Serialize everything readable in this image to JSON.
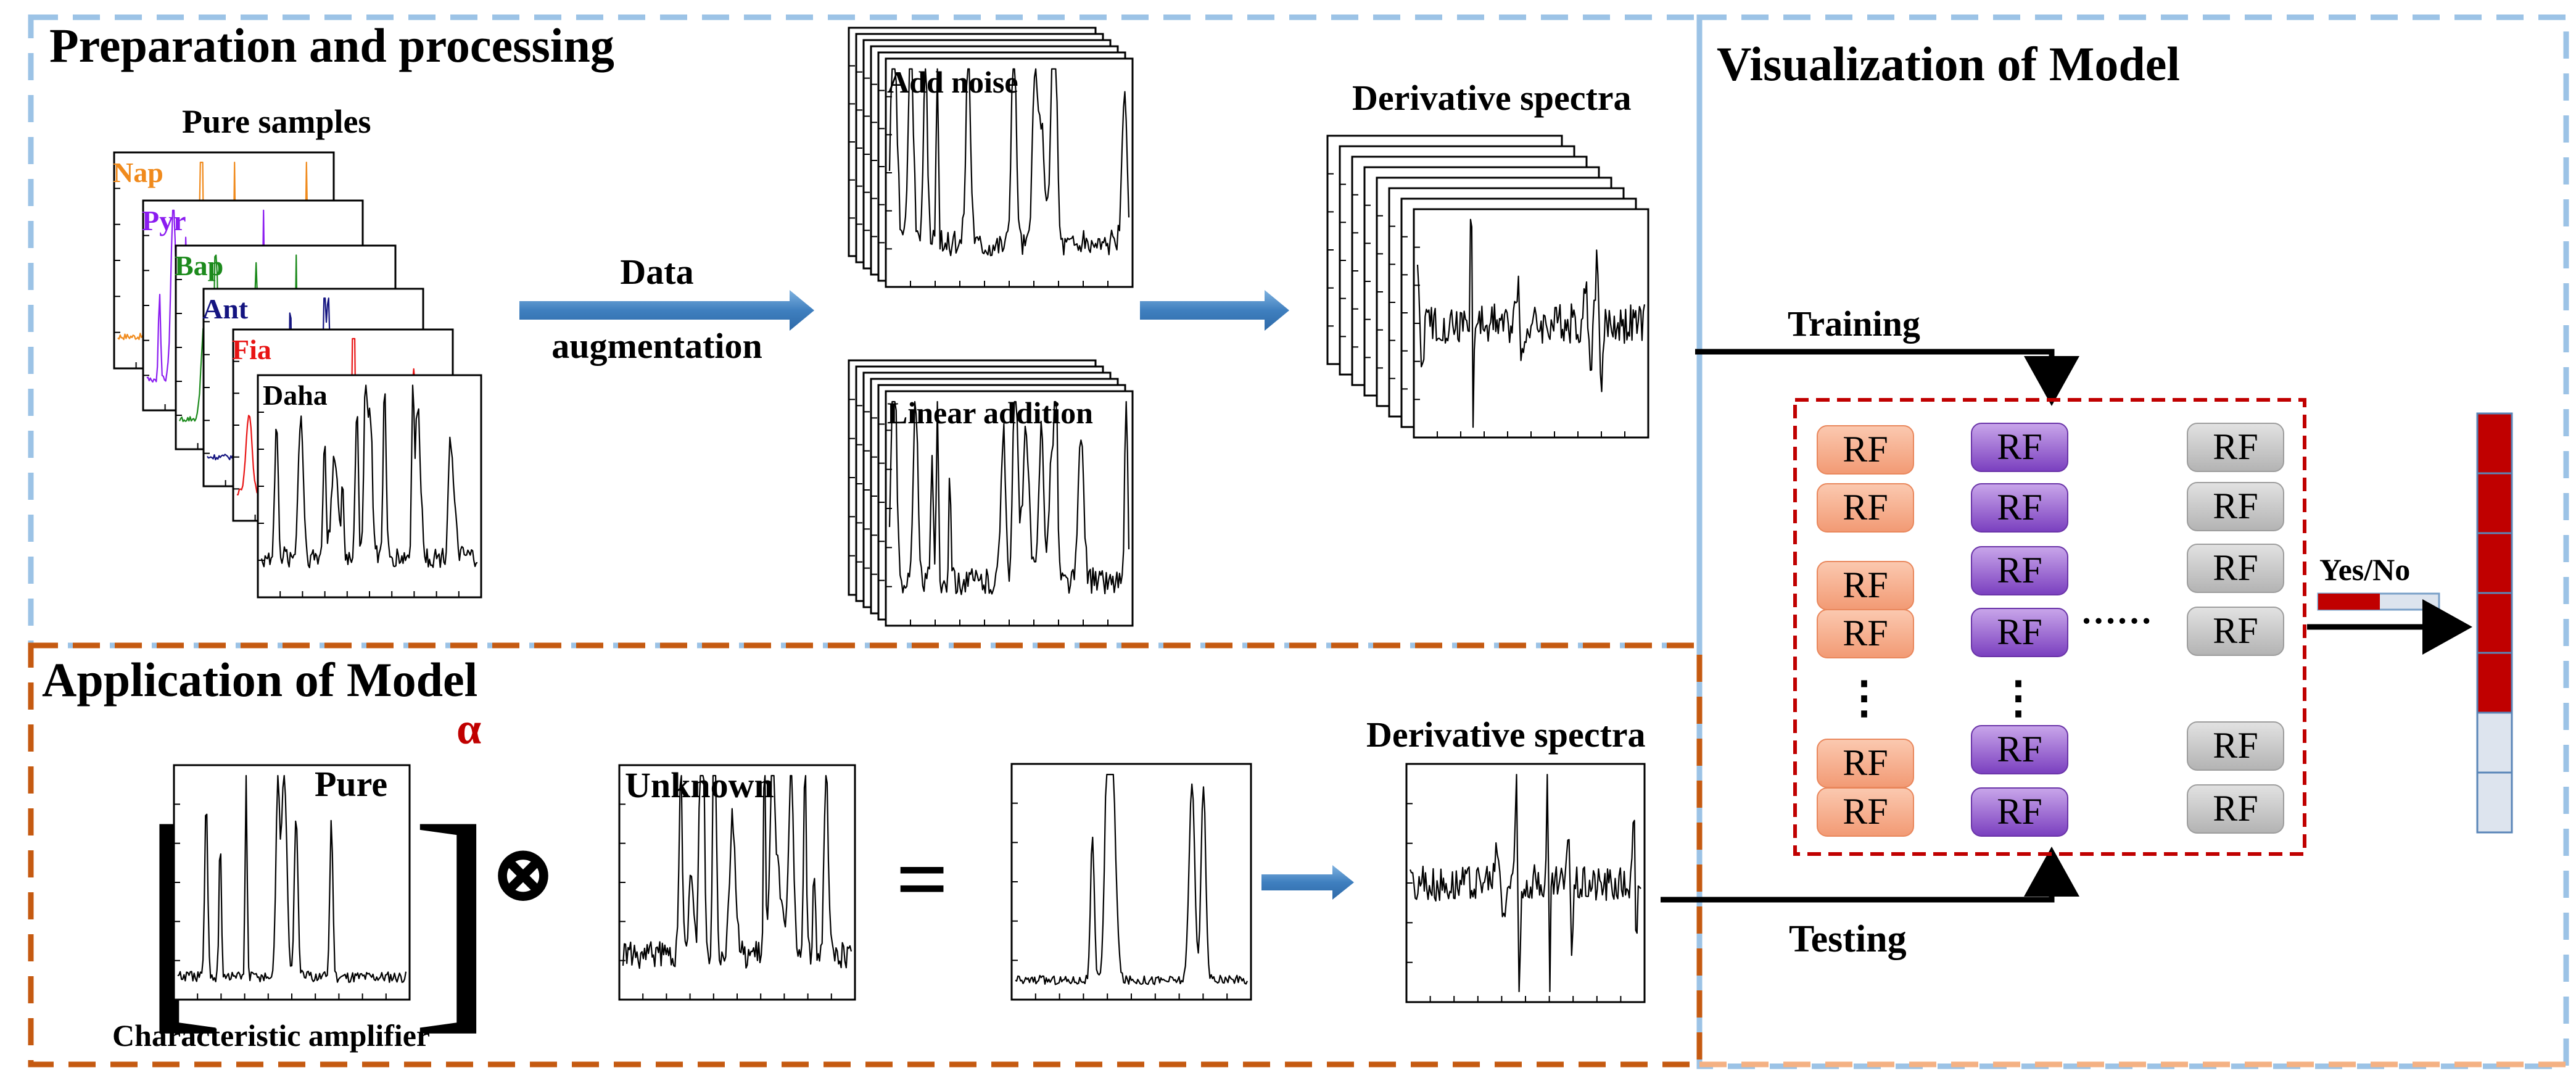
{
  "sections": {
    "preparation": {
      "title": "Preparation and processing"
    },
    "visualization": {
      "title": "Visualization of Model"
    },
    "application": {
      "title": "Application of Model"
    }
  },
  "pure_samples": {
    "title": "Pure samples",
    "items": [
      {
        "label": "Nap",
        "color": "#f08a1c"
      },
      {
        "label": "Pyr",
        "color": "#8b1cf0"
      },
      {
        "label": "Bap",
        "color": "#1c8a1c"
      },
      {
        "label": "Ant",
        "color": "#141480"
      },
      {
        "label": "Fia",
        "color": "#e81414"
      },
      {
        "label": "Daha",
        "color": "#000000"
      }
    ]
  },
  "augmentation": {
    "line1": "Data",
    "line2": "augmentation"
  },
  "augmented": {
    "add_noise": "Add noise",
    "linear_addition": "Linear addition"
  },
  "derivative_top": {
    "title": "Derivative spectra"
  },
  "model": {
    "training": "Training",
    "testing": "Testing",
    "rf_label": "RF",
    "ellipsis": "……",
    "vdots": "⋮",
    "output_label": "Yes/No",
    "colors": {
      "orange": "#f4a98a",
      "purple": "#8a4fc8",
      "gray": "#c4c4c4",
      "accent": "#c00000"
    }
  },
  "application": {
    "pure_label": "Pure",
    "alpha": "α",
    "caption": "Characteristic amplifier",
    "operator": "⊗",
    "equals": "=",
    "unknown_label": "Unknown",
    "derivative_title": "Derivative spectra"
  },
  "colors": {
    "border_blue": "#9cc3e6",
    "border_orange": "#c55a11",
    "border_peach": "#f4b183",
    "arrow_blue": "#5b9bd5"
  }
}
